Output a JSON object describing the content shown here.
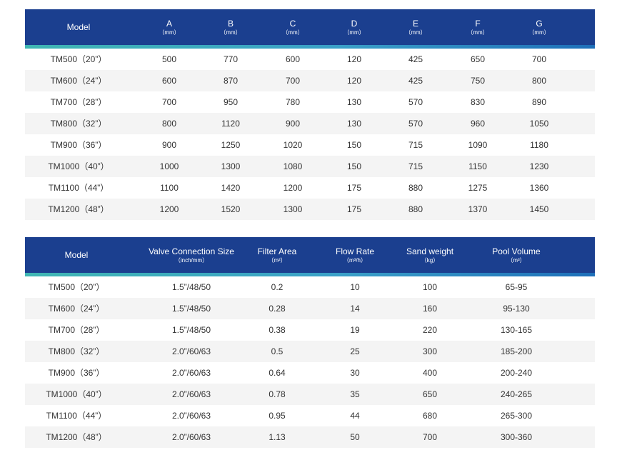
{
  "table1": {
    "headers": [
      {
        "label": "Model",
        "unit": ""
      },
      {
        "label": "A",
        "unit": "（mm）"
      },
      {
        "label": "B",
        "unit": "（mm）"
      },
      {
        "label": "C",
        "unit": "（mm）"
      },
      {
        "label": "D",
        "unit": "（mm）"
      },
      {
        "label": "E",
        "unit": "（mm）"
      },
      {
        "label": "F",
        "unit": "（mm）"
      },
      {
        "label": "G",
        "unit": "（mm）"
      }
    ],
    "rows": [
      [
        "TM500（20”）",
        "500",
        "770",
        "600",
        "120",
        "425",
        "650",
        "700"
      ],
      [
        "TM600（24”）",
        "600",
        "870",
        "700",
        "120",
        "425",
        "750",
        "800"
      ],
      [
        "TM700（28”）",
        "700",
        "950",
        "780",
        "130",
        "570",
        "830",
        "890"
      ],
      [
        "TM800（32”）",
        "800",
        "1120",
        "900",
        "130",
        "570",
        "960",
        "1050"
      ],
      [
        "TM900（36”）",
        "900",
        "1250",
        "1020",
        "150",
        "715",
        "1090",
        "1180"
      ],
      [
        "TM1000（40”）",
        "1000",
        "1300",
        "1080",
        "150",
        "715",
        "1150",
        "1230"
      ],
      [
        "TM1100（44”）",
        "1100",
        "1420",
        "1200",
        "175",
        "880",
        "1275",
        "1360"
      ],
      [
        "TM1200（48”）",
        "1200",
        "1520",
        "1300",
        "175",
        "880",
        "1370",
        "1450"
      ]
    ]
  },
  "table2": {
    "headers": [
      {
        "label": "Model",
        "unit": ""
      },
      {
        "label": "Valve Connection Size",
        "unit": "（inch/mm）"
      },
      {
        "label": "Filter Area",
        "unit": "（m²）"
      },
      {
        "label": "Flow Rate",
        "unit": "（m³/h）"
      },
      {
        "label": "Sand weight",
        "unit": "（kg）"
      },
      {
        "label": "Pool Volume",
        "unit": "（m³）"
      }
    ],
    "rows": [
      [
        "TM500（20”）",
        "1.5”/48/50",
        "0.2",
        "10",
        "100",
        "65-95"
      ],
      [
        "TM600（24”）",
        "1.5”/48/50",
        "0.28",
        "14",
        "160",
        "95-130"
      ],
      [
        "TM700（28”）",
        "1.5”/48/50",
        "0.38",
        "19",
        "220",
        "130-165"
      ],
      [
        "TM800（32”）",
        "2.0”/60/63",
        "0.5",
        "25",
        "300",
        "185-200"
      ],
      [
        "TM900（36”）",
        "2.0”/60/63",
        "0.64",
        "30",
        "400",
        "200-240"
      ],
      [
        "TM1000（40”）",
        "2.0”/60/63",
        "0.78",
        "35",
        "650",
        "240-265"
      ],
      [
        "TM1100（44”）",
        "2.0”/60/63",
        "0.95",
        "44",
        "680",
        "265-300"
      ],
      [
        "TM1200（48”）",
        "2.0”/60/63",
        "1.13",
        "50",
        "700",
        "300-360"
      ]
    ]
  },
  "colors": {
    "header_bg": "#1b3f8f",
    "accent_stripe": "#3fb6b3",
    "alt_row_bg": "#f4f4f4"
  }
}
